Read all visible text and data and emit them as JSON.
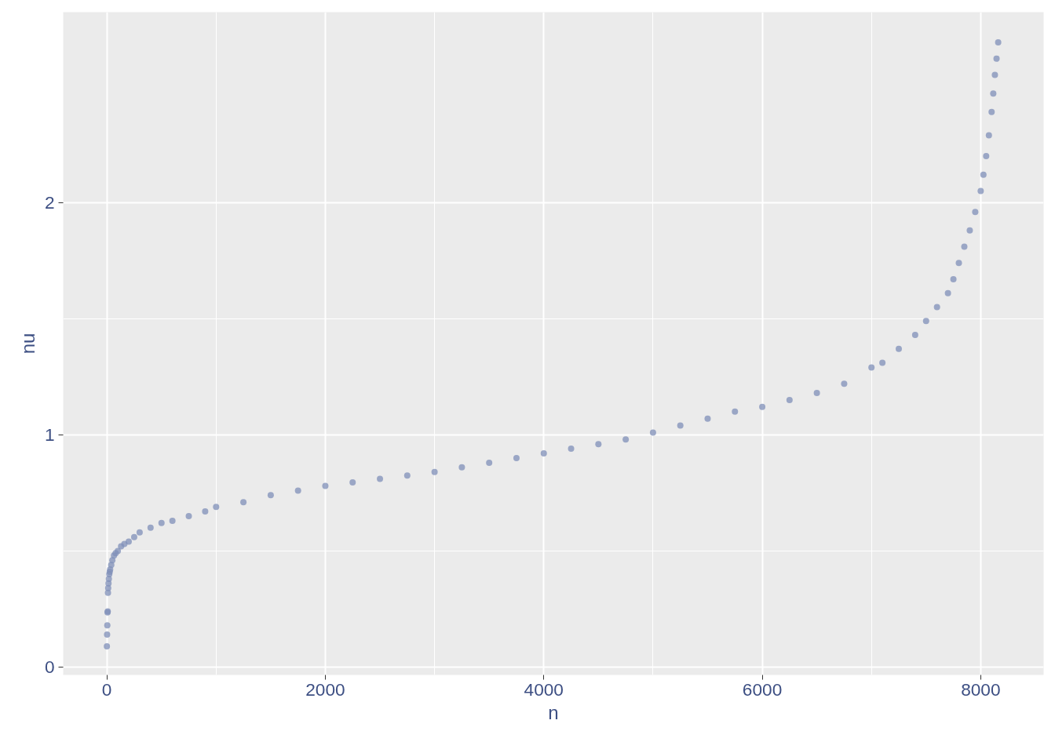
{
  "chart_data": {
    "type": "scatter",
    "xlabel": "n",
    "ylabel": "nu",
    "marker": "circle",
    "grid": true,
    "xlim": [
      -400,
      8576
    ],
    "ylim": [
      -0.034,
      2.82
    ],
    "xticks": [
      0,
      2000,
      4000,
      6000,
      8000
    ],
    "yticks": [
      0,
      1,
      2
    ],
    "series": [
      {
        "color": "#7f8fb8",
        "x": [
          0,
          2,
          4,
          6,
          8,
          10,
          12,
          15,
          18,
          22,
          26,
          30,
          40,
          50,
          65,
          80,
          100,
          130,
          160,
          200,
          250,
          300,
          400,
          500,
          600,
          750,
          900,
          1000,
          1250,
          1500,
          1750,
          2000,
          2250,
          2500,
          2750,
          3000,
          3250,
          3500,
          3750,
          4000,
          4250,
          4500,
          4750,
          5000,
          5250,
          5500,
          5750,
          6000,
          6250,
          6500,
          6750,
          7000,
          7100,
          7250,
          7400,
          7500,
          7600,
          7700,
          7750,
          7800,
          7850,
          7900,
          7950,
          8000,
          8025,
          8050,
          8075,
          8100,
          8115,
          8130,
          8145,
          8160
        ],
        "values": [
          0.089,
          0.14,
          0.18,
          0.235,
          0.24,
          0.32,
          0.34,
          0.36,
          0.38,
          0.4,
          0.41,
          0.42,
          0.44,
          0.46,
          0.48,
          0.49,
          0.5,
          0.52,
          0.53,
          0.54,
          0.56,
          0.58,
          0.6,
          0.62,
          0.63,
          0.65,
          0.67,
          0.69,
          0.71,
          0.74,
          0.76,
          0.78,
          0.795,
          0.81,
          0.825,
          0.84,
          0.86,
          0.88,
          0.9,
          0.92,
          0.94,
          0.96,
          0.98,
          1.01,
          1.04,
          1.07,
          1.1,
          1.12,
          1.15,
          1.18,
          1.22,
          1.29,
          1.31,
          1.37,
          1.43,
          1.49,
          1.55,
          1.61,
          1.67,
          1.74,
          1.81,
          1.88,
          1.96,
          2.05,
          2.12,
          2.2,
          2.29,
          2.39,
          2.47,
          2.55,
          2.62,
          2.69
        ]
      }
    ]
  }
}
